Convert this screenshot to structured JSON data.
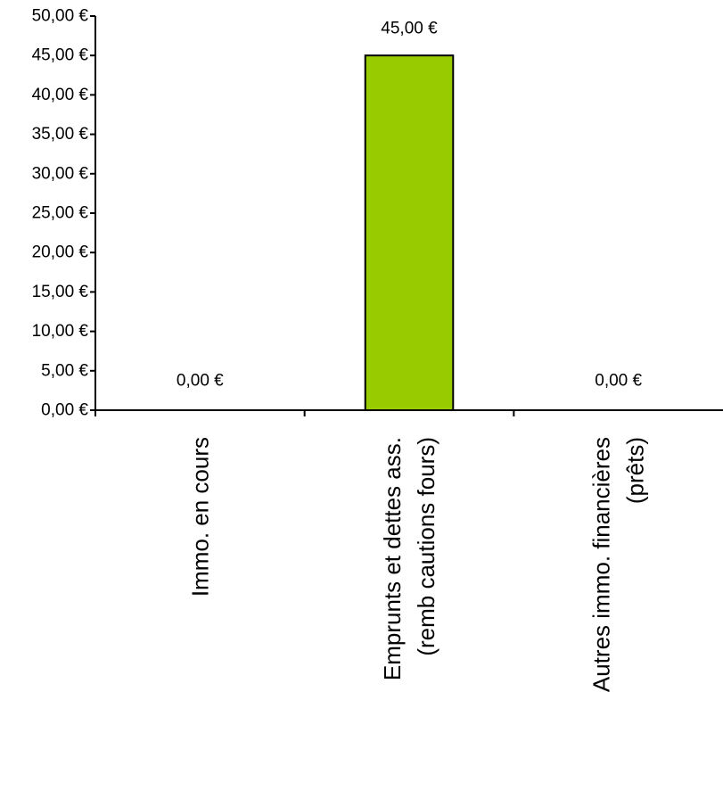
{
  "chart_data": {
    "type": "bar",
    "title": "",
    "xlabel": "",
    "ylabel": "",
    "ylim": [
      0,
      50
    ],
    "grid": false,
    "legend": "none",
    "y_ticks": [
      0,
      5,
      10,
      15,
      20,
      25,
      30,
      35,
      40,
      45,
      50
    ],
    "y_tick_labels": [
      "0,00 €",
      "5,00 €",
      "10,00 €",
      "15,00 €",
      "20,00 €",
      "25,00 €",
      "30,00 €",
      "35,00 €",
      "40,00 €",
      "45,00 €",
      "50,00 €"
    ],
    "categories": [
      [
        "Immo. en cours"
      ],
      [
        "Emprunts et dettes ass.",
        "(remb cautions fours)"
      ],
      [
        "Autres immo. financières",
        "(prêts)"
      ]
    ],
    "values": [
      0,
      45,
      0
    ],
    "data_labels": [
      "0,00 €",
      "45,00 €",
      "0,00 €"
    ],
    "bar_color": "#99cc00",
    "bar_stroke": "#000000"
  }
}
